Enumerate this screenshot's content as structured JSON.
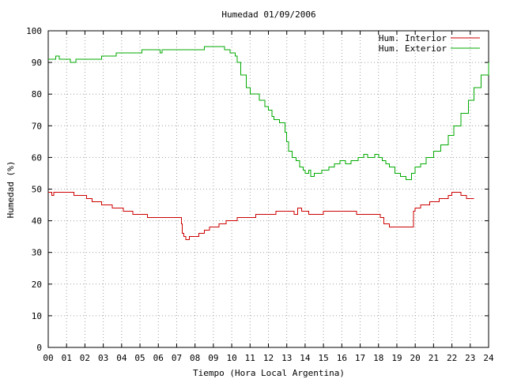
{
  "chart_data": {
    "type": "line",
    "title": "Humedad 01/09/2006",
    "xlabel": "Tiempo (Hora Local Argentina)",
    "ylabel": "Humedad (%)",
    "xlim": [
      0,
      24
    ],
    "ylim": [
      0,
      100
    ],
    "xticks": [
      "00",
      "01",
      "02",
      "03",
      "04",
      "05",
      "06",
      "07",
      "08",
      "09",
      "10",
      "11",
      "12",
      "13",
      "14",
      "15",
      "16",
      "17",
      "18",
      "19",
      "20",
      "21",
      "22",
      "23",
      "24"
    ],
    "yticks": [
      0,
      10,
      20,
      30,
      40,
      50,
      60,
      70,
      80,
      90,
      100
    ],
    "grid": true,
    "legend_position": "top-right",
    "series": [
      {
        "name": "Hum. Interior",
        "color": "#cc0000",
        "points": [
          [
            0.0,
            49
          ],
          [
            0.2,
            48
          ],
          [
            0.3,
            49
          ],
          [
            0.5,
            49
          ],
          [
            1.4,
            48
          ],
          [
            2.1,
            47
          ],
          [
            2.4,
            46
          ],
          [
            2.9,
            45
          ],
          [
            3.5,
            44
          ],
          [
            4.1,
            43
          ],
          [
            4.6,
            42
          ],
          [
            5.4,
            41
          ],
          [
            6.5,
            41
          ],
          [
            7.1,
            41
          ],
          [
            7.25,
            39
          ],
          [
            7.3,
            36
          ],
          [
            7.4,
            35
          ],
          [
            7.5,
            34
          ],
          [
            7.7,
            35
          ],
          [
            8.2,
            36
          ],
          [
            8.5,
            37
          ],
          [
            8.8,
            38
          ],
          [
            9.3,
            39
          ],
          [
            9.7,
            40
          ],
          [
            10.3,
            41
          ],
          [
            11.0,
            41
          ],
          [
            11.3,
            42
          ],
          [
            12.1,
            42
          ],
          [
            12.4,
            43
          ],
          [
            13.2,
            43
          ],
          [
            13.4,
            42
          ],
          [
            13.6,
            44
          ],
          [
            13.8,
            43
          ],
          [
            14.2,
            42
          ],
          [
            14.7,
            42
          ],
          [
            15.0,
            43
          ],
          [
            15.5,
            43
          ],
          [
            16.4,
            43
          ],
          [
            16.8,
            42
          ],
          [
            17.8,
            42
          ],
          [
            18.1,
            41
          ],
          [
            18.3,
            39
          ],
          [
            18.6,
            38
          ],
          [
            19.6,
            38
          ],
          [
            19.9,
            43
          ],
          [
            20.0,
            44
          ],
          [
            20.3,
            45
          ],
          [
            20.8,
            46
          ],
          [
            21.3,
            47
          ],
          [
            21.8,
            48
          ],
          [
            22.0,
            49
          ],
          [
            22.5,
            48
          ],
          [
            22.8,
            47
          ],
          [
            23.2,
            47
          ]
        ]
      },
      {
        "name": "Hum. Exterior",
        "color": "#00aa00",
        "points": [
          [
            0.0,
            91
          ],
          [
            0.2,
            91
          ],
          [
            0.4,
            92
          ],
          [
            0.6,
            91
          ],
          [
            1.1,
            91
          ],
          [
            1.2,
            90
          ],
          [
            1.5,
            91
          ],
          [
            2.8,
            91
          ],
          [
            2.9,
            92
          ],
          [
            3.6,
            92
          ],
          [
            3.7,
            93
          ],
          [
            5.0,
            93
          ],
          [
            5.1,
            94
          ],
          [
            5.6,
            94
          ],
          [
            6.1,
            93
          ],
          [
            6.2,
            94
          ],
          [
            7.0,
            94
          ],
          [
            7.7,
            94
          ],
          [
            8.3,
            94
          ],
          [
            8.5,
            95
          ],
          [
            9.3,
            95
          ],
          [
            9.6,
            94
          ],
          [
            9.9,
            93
          ],
          [
            10.2,
            92
          ],
          [
            10.3,
            90
          ],
          [
            10.5,
            86
          ],
          [
            10.8,
            82
          ],
          [
            11.0,
            80
          ],
          [
            11.4,
            80
          ],
          [
            11.5,
            78
          ],
          [
            11.8,
            76
          ],
          [
            12.0,
            75
          ],
          [
            12.2,
            73
          ],
          [
            12.3,
            72
          ],
          [
            12.6,
            71
          ],
          [
            12.9,
            68
          ],
          [
            13.0,
            65
          ],
          [
            13.1,
            62
          ],
          [
            13.3,
            60
          ],
          [
            13.5,
            59
          ],
          [
            13.7,
            57
          ],
          [
            13.9,
            56
          ],
          [
            14.0,
            55
          ],
          [
            14.2,
            56
          ],
          [
            14.3,
            54
          ],
          [
            14.5,
            55
          ],
          [
            14.9,
            56
          ],
          [
            15.3,
            57
          ],
          [
            15.6,
            58
          ],
          [
            15.9,
            59
          ],
          [
            16.2,
            58
          ],
          [
            16.5,
            59
          ],
          [
            16.9,
            60
          ],
          [
            17.2,
            61
          ],
          [
            17.4,
            60
          ],
          [
            17.6,
            60
          ],
          [
            17.8,
            61
          ],
          [
            18.0,
            60
          ],
          [
            18.2,
            59
          ],
          [
            18.4,
            58
          ],
          [
            18.6,
            57
          ],
          [
            18.9,
            55
          ],
          [
            19.2,
            54
          ],
          [
            19.5,
            53
          ],
          [
            19.8,
            55
          ],
          [
            20.0,
            57
          ],
          [
            20.3,
            58
          ],
          [
            20.6,
            60
          ],
          [
            21.0,
            62
          ],
          [
            21.4,
            64
          ],
          [
            21.8,
            67
          ],
          [
            22.1,
            70
          ],
          [
            22.5,
            74
          ],
          [
            22.9,
            78
          ],
          [
            23.2,
            82
          ],
          [
            23.6,
            86
          ],
          [
            24.0,
            90
          ]
        ]
      }
    ]
  }
}
